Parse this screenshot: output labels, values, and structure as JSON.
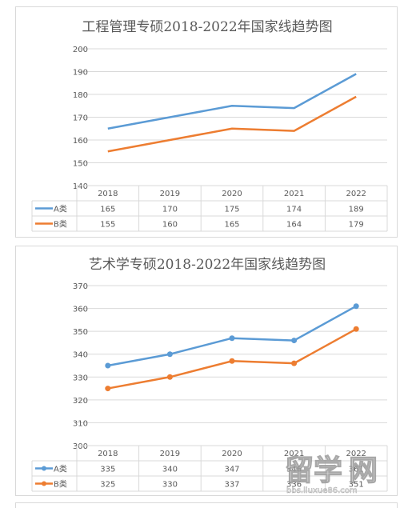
{
  "chart_data": [
    {
      "type": "line",
      "title": "工程管理专硕2018-2022年国家线趋势图",
      "categories": [
        "2018",
        "2019",
        "2020",
        "2021",
        "2022"
      ],
      "series": [
        {
          "name": "A类",
          "values": [
            165,
            170,
            175,
            174,
            189
          ],
          "color": "#5b9bd5"
        },
        {
          "name": "B类",
          "values": [
            155,
            160,
            165,
            164,
            179
          ],
          "color": "#ed7d31"
        }
      ],
      "ylim": [
        140,
        200
      ],
      "yticks": [
        140,
        150,
        160,
        170,
        180,
        190,
        200
      ],
      "markers": false,
      "grid": true,
      "data_table": true
    },
    {
      "type": "line",
      "title": "艺术学专硕2018-2022年国家线趋势图",
      "categories": [
        "2018",
        "2019",
        "2020",
        "2021",
        "2022"
      ],
      "series": [
        {
          "name": "A类",
          "values": [
            335,
            340,
            347,
            346,
            361
          ],
          "color": "#5b9bd5"
        },
        {
          "name": "B类",
          "values": [
            325,
            330,
            337,
            336,
            351
          ],
          "color": "#ed7d31"
        }
      ],
      "ylim": [
        300,
        370
      ],
      "yticks": [
        300,
        310,
        320,
        330,
        340,
        350,
        360,
        370
      ],
      "markers": true,
      "grid": true,
      "data_table": true
    }
  ]
}
